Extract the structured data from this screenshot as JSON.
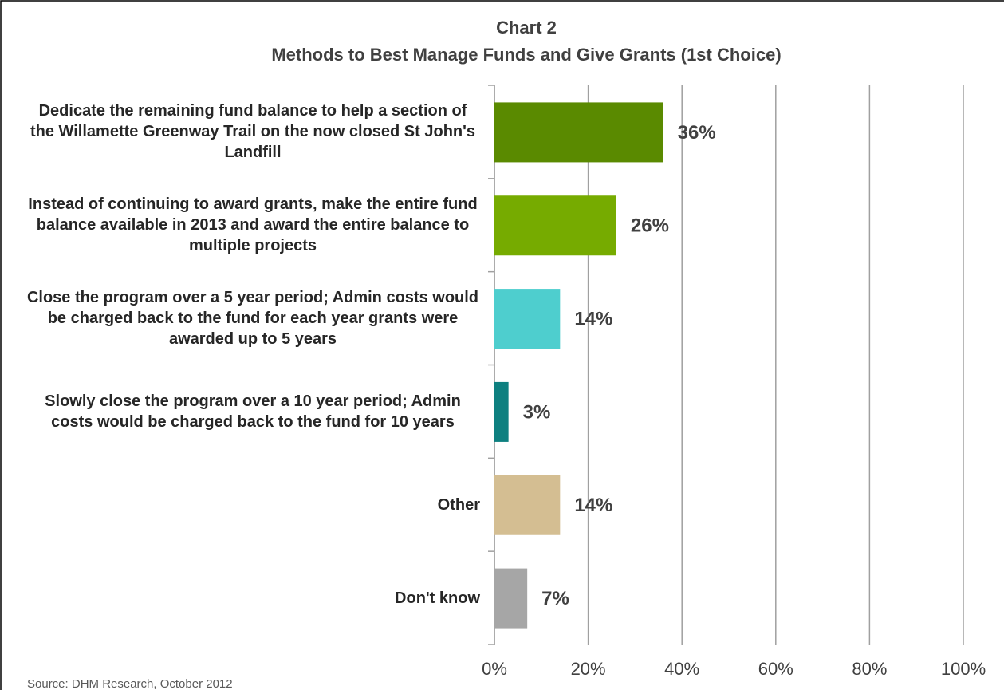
{
  "chart_data": {
    "type": "bar",
    "orientation": "horizontal",
    "title": "Chart 2",
    "subtitle": "Methods to Best Manage Funds and Give Grants (1st Choice)",
    "categories": [
      "Dedicate the remaining fund balance to help a section of the Willamette Greenway Trail on the now closed St John's Landfill",
      "Instead of continuing to award grants, make the entire fund balance available in 2013 and award the entire balance to multiple projects",
      "Close the program over a 5 year period; Admin costs would be charged back to the fund for each year grants were awarded up to 5 years",
      "Slowly close the program over a 10 year period; Admin costs would be charged back to the fund for 10 years",
      "Other",
      "Don't know"
    ],
    "values": [
      36,
      26,
      14,
      3,
      14,
      7
    ],
    "value_labels": [
      "36%",
      "26%",
      "14%",
      "3%",
      "14%",
      "7%"
    ],
    "colors": [
      "#5a8a00",
      "#76ab00",
      "#4ecece",
      "#0e8080",
      "#d4be92",
      "#a6a6a6"
    ],
    "xlim": [
      0,
      100
    ],
    "xticks": [
      {
        "value": 0,
        "label": "0%"
      },
      {
        "value": 20,
        "label": "20%"
      },
      {
        "value": 40,
        "label": "40%"
      },
      {
        "value": 60,
        "label": "60%"
      },
      {
        "value": 80,
        "label": "80%"
      },
      {
        "value": 100,
        "label": "100%"
      }
    ],
    "grid": true,
    "source": "Source: DHM Research, October 2012"
  }
}
